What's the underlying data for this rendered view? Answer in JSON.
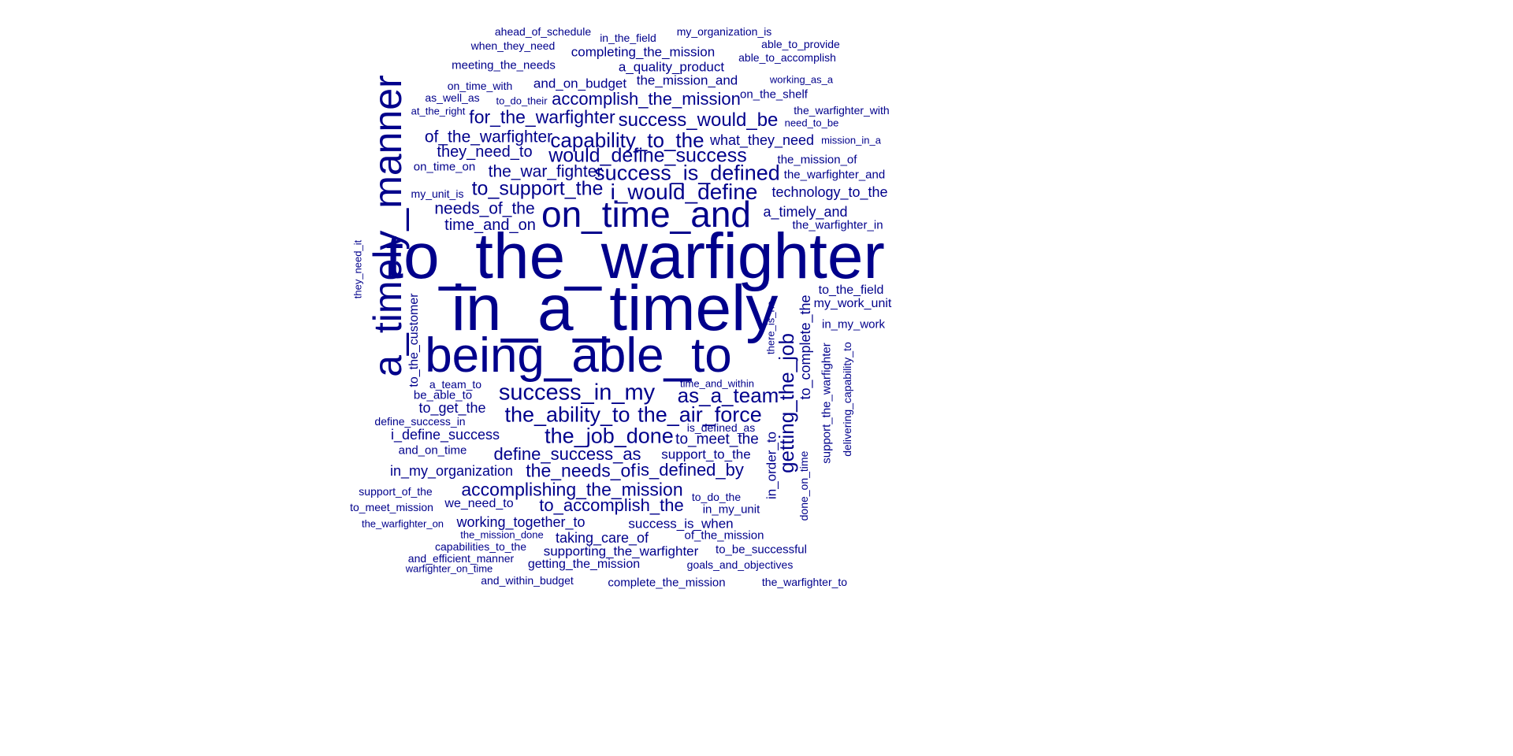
{
  "word_color": "#00008B",
  "words": [
    {
      "text": "to_the_warfighter",
      "orientation": "horizontal"
    },
    {
      "text": "in_a_timely",
      "orientation": "horizontal"
    },
    {
      "text": "a_timely_manner",
      "orientation": "vertical"
    },
    {
      "text": "being_able_to",
      "orientation": "horizontal"
    },
    {
      "text": "on_time_and",
      "orientation": "horizontal"
    },
    {
      "text": "i_would_define",
      "orientation": "horizontal"
    },
    {
      "text": "success_is_defined",
      "orientation": "horizontal"
    },
    {
      "text": "would_define_success",
      "orientation": "horizontal"
    },
    {
      "text": "capability_to_the",
      "orientation": "horizontal"
    },
    {
      "text": "to_support_the",
      "orientation": "horizontal"
    },
    {
      "text": "success_would_be",
      "orientation": "horizontal"
    },
    {
      "text": "for_the_warfighter",
      "orientation": "horizontal"
    },
    {
      "text": "accomplish_the_mission",
      "orientation": "horizontal"
    },
    {
      "text": "the_war_fighter",
      "orientation": "horizontal"
    },
    {
      "text": "of_the_warfighter",
      "orientation": "horizontal"
    },
    {
      "text": "they_need_to",
      "orientation": "horizontal"
    },
    {
      "text": "needs_of_the",
      "orientation": "horizontal"
    },
    {
      "text": "time_and_on",
      "orientation": "horizontal"
    },
    {
      "text": "success_in_my",
      "orientation": "horizontal"
    },
    {
      "text": "as_a_team",
      "orientation": "horizontal"
    },
    {
      "text": "the_ability_to",
      "orientation": "horizontal"
    },
    {
      "text": "the_air_force",
      "orientation": "horizontal"
    },
    {
      "text": "the_job_done",
      "orientation": "horizontal"
    },
    {
      "text": "getting_the_job",
      "orientation": "vertical"
    },
    {
      "text": "define_success_as",
      "orientation": "horizontal"
    },
    {
      "text": "the_needs_of",
      "orientation": "horizontal"
    },
    {
      "text": "is_defined_by",
      "orientation": "horizontal"
    },
    {
      "text": "accomplishing_the_mission",
      "orientation": "horizontal"
    },
    {
      "text": "to_accomplish_the",
      "orientation": "horizontal"
    },
    {
      "text": "what_they_need",
      "orientation": "horizontal"
    },
    {
      "text": "technology_to_the",
      "orientation": "horizontal"
    },
    {
      "text": "a_timely_and",
      "orientation": "horizontal"
    },
    {
      "text": "to_meet_the",
      "orientation": "horizontal"
    },
    {
      "text": "support_to_the",
      "orientation": "horizontal"
    },
    {
      "text": "in_my_organization",
      "orientation": "horizontal"
    },
    {
      "text": "i_define_success",
      "orientation": "horizontal"
    },
    {
      "text": "to_get_the",
      "orientation": "horizontal"
    },
    {
      "text": "working_together_to",
      "orientation": "horizontal"
    },
    {
      "text": "success_is_when",
      "orientation": "horizontal"
    },
    {
      "text": "taking_care_of",
      "orientation": "horizontal"
    },
    {
      "text": "supporting_the_warfighter",
      "orientation": "horizontal"
    },
    {
      "text": "to_complete_the",
      "orientation": "vertical"
    },
    {
      "text": "in_order_to",
      "orientation": "vertical"
    },
    {
      "text": "the_mission_and",
      "orientation": "horizontal"
    },
    {
      "text": "and_on_budget",
      "orientation": "horizontal"
    },
    {
      "text": "a_quality_product",
      "orientation": "horizontal"
    },
    {
      "text": "completing_the_mission",
      "orientation": "horizontal"
    },
    {
      "text": "meeting_the_needs",
      "orientation": "horizontal"
    },
    {
      "text": "the_mission_of",
      "orientation": "horizontal"
    },
    {
      "text": "the_warfighter_and",
      "orientation": "horizontal"
    },
    {
      "text": "the_warfighter_in",
      "orientation": "horizontal"
    },
    {
      "text": "to_the_field",
      "orientation": "horizontal"
    },
    {
      "text": "my_work_unit",
      "orientation": "horizontal"
    },
    {
      "text": "on_the_shelf",
      "orientation": "horizontal"
    },
    {
      "text": "to_the_customer",
      "orientation": "vertical"
    },
    {
      "text": "in_my_work",
      "orientation": "horizontal"
    },
    {
      "text": "support_the_warfighter",
      "orientation": "vertical"
    },
    {
      "text": "delivering_capability_to",
      "orientation": "vertical"
    },
    {
      "text": "to_do_the",
      "orientation": "horizontal"
    },
    {
      "text": "in_my_unit",
      "orientation": "horizontal"
    },
    {
      "text": "we_need_to",
      "orientation": "horizontal"
    },
    {
      "text": "and_on_time",
      "orientation": "horizontal"
    },
    {
      "text": "getting_the_mission",
      "orientation": "horizontal"
    },
    {
      "text": "to_be_successful",
      "orientation": "horizontal"
    },
    {
      "text": "goals_and_objectives",
      "orientation": "horizontal"
    },
    {
      "text": "complete_the_mission",
      "orientation": "horizontal"
    },
    {
      "text": "of_the_mission",
      "orientation": "horizontal"
    },
    {
      "text": "ahead_of_schedule",
      "orientation": "horizontal"
    },
    {
      "text": "in_the_field",
      "orientation": "horizontal"
    },
    {
      "text": "my_organization_is",
      "orientation": "horizontal"
    },
    {
      "text": "when_they_need",
      "orientation": "horizontal"
    },
    {
      "text": "able_to_provide",
      "orientation": "horizontal"
    },
    {
      "text": "able_to_accomplish",
      "orientation": "horizontal"
    },
    {
      "text": "working_as_a",
      "orientation": "horizontal"
    },
    {
      "text": "on_time_with",
      "orientation": "horizontal"
    },
    {
      "text": "as_well_as",
      "orientation": "horizontal"
    },
    {
      "text": "to_do_their",
      "orientation": "horizontal"
    },
    {
      "text": "at_the_right",
      "orientation": "horizontal"
    },
    {
      "text": "the_warfighter_with",
      "orientation": "horizontal"
    },
    {
      "text": "need_to_be",
      "orientation": "horizontal"
    },
    {
      "text": "mission_in_a",
      "orientation": "horizontal"
    },
    {
      "text": "on_time_on",
      "orientation": "horizontal"
    },
    {
      "text": "my_unit_is",
      "orientation": "horizontal"
    },
    {
      "text": "they_need_it",
      "orientation": "vertical"
    },
    {
      "text": "there_is_no",
      "orientation": "vertical"
    },
    {
      "text": "a_team_to",
      "orientation": "horizontal"
    },
    {
      "text": "be_able_to",
      "orientation": "horizontal"
    },
    {
      "text": "time_and_within",
      "orientation": "horizontal"
    },
    {
      "text": "define_success_in",
      "orientation": "horizontal"
    },
    {
      "text": "is_defined_as",
      "orientation": "horizontal"
    },
    {
      "text": "support_of_the",
      "orientation": "horizontal"
    },
    {
      "text": "to_meet_mission",
      "orientation": "horizontal"
    },
    {
      "text": "the_warfighter_on",
      "orientation": "horizontal"
    },
    {
      "text": "done_on_time",
      "orientation": "vertical"
    },
    {
      "text": "the_mission_done",
      "orientation": "horizontal"
    },
    {
      "text": "capabilities_to_the",
      "orientation": "horizontal"
    },
    {
      "text": "and_efficient_manner",
      "orientation": "horizontal"
    },
    {
      "text": "warfighter_on_time",
      "orientation": "horizontal"
    },
    {
      "text": "and_within_budget",
      "orientation": "horizontal"
    },
    {
      "text": "the_warfighter_to",
      "orientation": "horizontal"
    }
  ]
}
